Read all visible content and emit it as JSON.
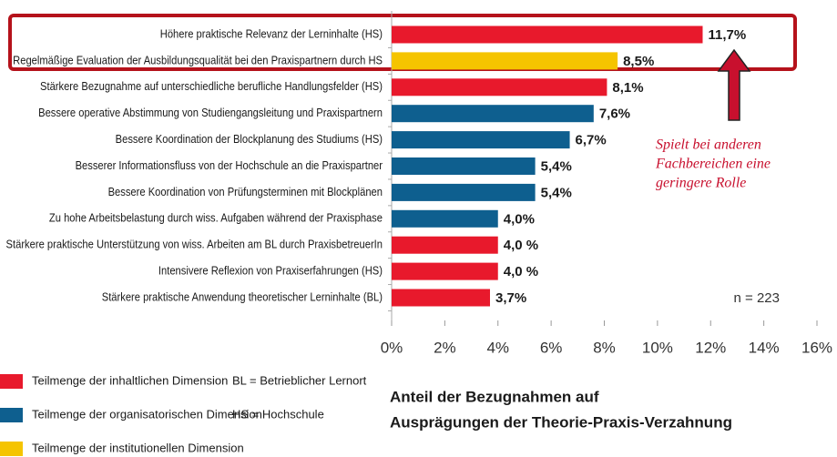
{
  "chart_data": {
    "type": "bar",
    "orientation": "horizontal",
    "categories": [
      "Höhere praktische Relevanz der Lerninhalte (HS)",
      "Regelmäßige Evaluation der Ausbildungsqualität bei den Praxispartnern durch HS",
      "Stärkere Bezugnahme auf unterschiedliche berufliche Handlungsfelder (HS)",
      "Bessere operative Abstimmung von Studiengangsleitung und Praxispartnern",
      "Bessere Koordination der Blockplanung des Studiums (HS)",
      "Besserer Informationsfluss von der Hochschule an die Praxispartner",
      "Bessere Koordination von Prüfungsterminen mit Blockplänen",
      "Zu hohe Arbeitsbelastung durch wiss. Aufgaben während der Praxisphase",
      "Stärkere praktische Unterstützung von wiss. Arbeiten am BL durch PraxisbetreuerIn",
      "Intensivere Reflexion von Praxiserfahrungen (HS)",
      "Stärkere praktische Anwendung theoretischer Lerninhalte (BL)"
    ],
    "values": [
      11.7,
      8.5,
      8.1,
      7.6,
      6.7,
      5.4,
      5.4,
      4.0,
      4.0,
      4.0,
      3.7
    ],
    "value_labels": [
      "11,7%",
      "8,5%",
      "8,1%",
      "7,6%",
      "6,7%",
      "5,4%",
      "5,4%",
      "4,0%",
      "4,0 %",
      "4,0 %",
      "3,7%"
    ],
    "colors": [
      "#e8192c",
      "#f5c400",
      "#e8192c",
      "#0e5f8f",
      "#0e5f8f",
      "#0e5f8f",
      "#0e5f8f",
      "#0e5f8f",
      "#e8192c",
      "#e8192c",
      "#e8192c"
    ],
    "xlim": [
      0,
      16
    ],
    "xticks": [
      {
        "value": 0,
        "label": "0%"
      },
      {
        "value": 2,
        "label": "2%"
      },
      {
        "value": 4,
        "label": "4%"
      },
      {
        "value": 6,
        "label": "6%"
      },
      {
        "value": 8,
        "label": "8%"
      },
      {
        "value": 10,
        "label": "10%"
      },
      {
        "value": 12,
        "label": "12%"
      },
      {
        "value": 14,
        "label": "14%"
      },
      {
        "value": 16,
        "label": "16%"
      }
    ],
    "legend": [
      {
        "label": "Teilmenge der inhaltlichen Dimension",
        "color": "#e8192c"
      },
      {
        "label": "Teilmenge der organisatorischen Dimension",
        "color": "#0e5f8f"
      },
      {
        "label": "Teilmenge der institutionellen Dimension",
        "color": "#f5c400"
      }
    ],
    "notes": [
      "BL = Betrieblicher Lernort",
      "HS = Hochschule"
    ],
    "sample_size": "n = 223",
    "caption": [
      "Anteil der Bezugnahmen auf",
      "Ausprägungen der Theorie-Praxis-Verzahnung"
    ],
    "annotation": [
      "Spielt bei anderen",
      "Fachbereichen eine",
      "geringere Rolle"
    ]
  }
}
